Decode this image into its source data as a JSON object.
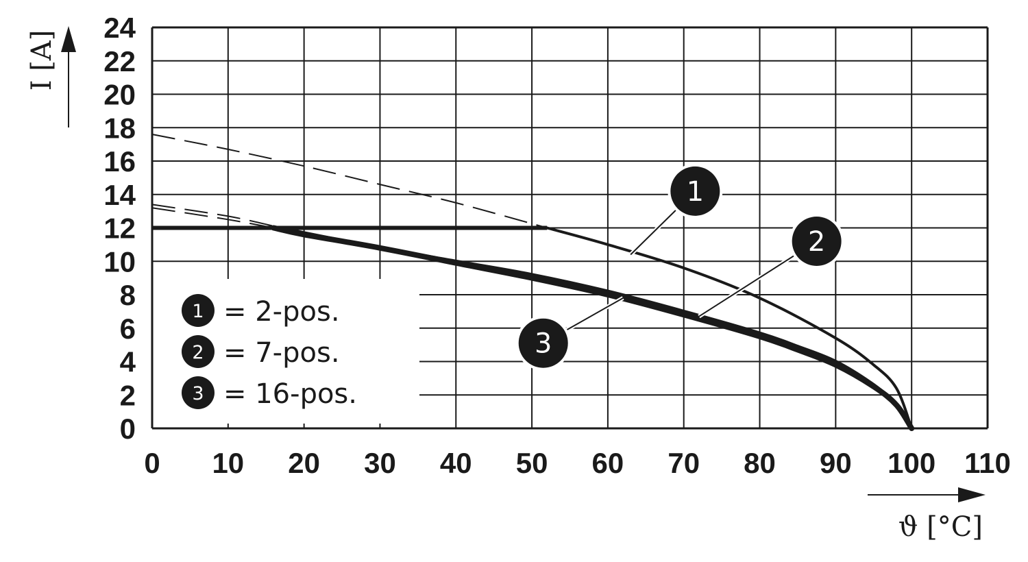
{
  "chart_data": {
    "type": "line",
    "xlabel": "ϑ [°C]",
    "ylabel": "I [A]",
    "xlim": [
      0,
      110
    ],
    "ylim": [
      0,
      24
    ],
    "x_ticks": [
      "0",
      "10",
      "20",
      "30",
      "40",
      "50",
      "60",
      "70",
      "80",
      "90",
      "100",
      "110"
    ],
    "y_ticks": [
      "0",
      "2",
      "4",
      "6",
      "8",
      "10",
      "12",
      "14",
      "16",
      "18",
      "20",
      "22",
      "24"
    ],
    "grid": true,
    "legend_position": "bottom-left",
    "series": [
      {
        "name": "2-pos.",
        "marker": "1",
        "legend_label": "= 2-pos.",
        "limit": 12,
        "x": [
          0,
          10,
          20,
          30,
          40,
          52,
          60,
          70,
          80,
          90,
          95,
          98,
          100
        ],
        "y": [
          17.6,
          16.7,
          15.7,
          14.6,
          13.5,
          12.0,
          11.0,
          9.6,
          7.8,
          5.4,
          3.8,
          2.4,
          0
        ],
        "label_at": [
          63,
          10.4
        ],
        "marker_at": [
          71.5,
          14.2
        ]
      },
      {
        "name": "7-pos.",
        "marker": "2",
        "legend_label": "= 7-pos.",
        "limit": 12,
        "x": [
          0,
          10,
          17,
          20,
          30,
          40,
          50,
          60,
          70,
          80,
          85,
          90,
          95,
          98,
          100
        ],
        "y": [
          13.4,
          12.7,
          12.0,
          11.7,
          10.8,
          10.0,
          9.2,
          8.2,
          7.0,
          5.7,
          4.9,
          4.0,
          2.6,
          1.4,
          0
        ],
        "label_at": [
          72,
          6.7
        ],
        "marker_at": [
          87.5,
          11.2
        ]
      },
      {
        "name": "16-pos.",
        "marker": "3",
        "legend_label": "= 16-pos.",
        "limit": 12,
        "x": [
          0,
          10,
          16,
          20,
          30,
          40,
          50,
          60,
          70,
          80,
          85,
          90,
          95,
          98,
          100
        ],
        "y": [
          13.2,
          12.5,
          12.0,
          11.6,
          10.8,
          9.9,
          9.0,
          8.0,
          6.8,
          5.5,
          4.7,
          3.8,
          2.5,
          1.4,
          0
        ],
        "label_at": [
          62,
          7.8
        ],
        "marker_at": [
          51.5,
          5.1
        ]
      }
    ],
    "colors": {
      "line": "#1a1a1a",
      "grid": "#1a1a1a",
      "background": "#ffffff"
    }
  }
}
